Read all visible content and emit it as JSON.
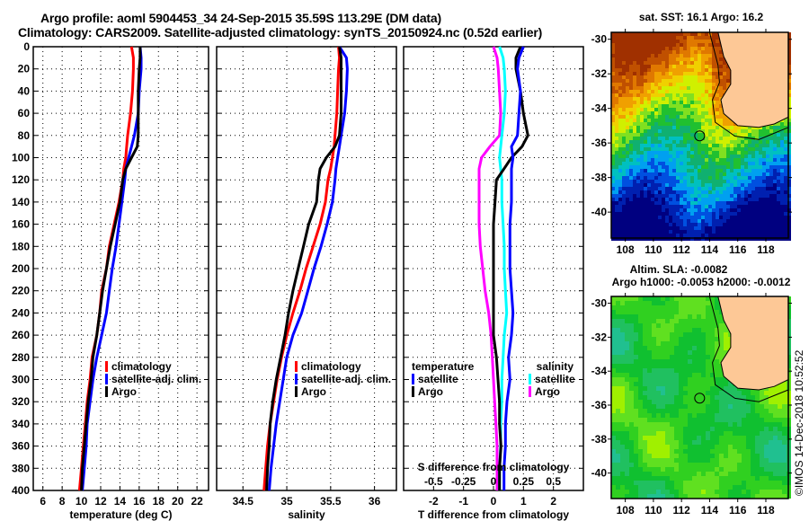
{
  "title": {
    "line1": "Argo profile: aoml 5904453_34 24-Sep-2015 35.59S 113.29E (DM data)",
    "line2": "Climatology: CARS2009. Satellite-adjusted climatology: synTS_20150924.nc (0.52d earlier)"
  },
  "colors": {
    "climatology": "#ff0000",
    "satellite": "#0000ff",
    "argo": "#000000",
    "sal_satellite": "#00ffff",
    "sal_argo": "#ff00ff",
    "land": "#fdc896"
  },
  "chart_data": [
    {
      "type": "line",
      "name": "temperature-profile",
      "xlabel": "temperature (deg C)",
      "ylabel": "",
      "xlim": [
        5,
        23.2
      ],
      "ylim": [
        400,
        0
      ],
      "xticks": [
        6,
        8,
        10,
        12,
        14,
        16,
        18,
        20,
        22
      ],
      "yticks": [
        0,
        20,
        40,
        60,
        80,
        100,
        120,
        140,
        160,
        180,
        200,
        220,
        240,
        260,
        280,
        300,
        320,
        340,
        360,
        380,
        400
      ],
      "grid": true,
      "legend": {
        "placement": "middle-right",
        "entries": [
          "climatology",
          "satellite-adj. clim.",
          "Argo"
        ]
      },
      "depth": [
        0,
        10,
        20,
        40,
        60,
        80,
        90,
        100,
        110,
        120,
        140,
        160,
        180,
        200,
        220,
        240,
        260,
        280,
        300,
        320,
        340,
        360,
        380,
        400
      ],
      "series": [
        {
          "name": "climatology",
          "values": [
            15.2,
            15.4,
            15.4,
            15.3,
            15.1,
            14.8,
            14.7,
            14.6,
            14.4,
            14.3,
            13.9,
            13.4,
            12.9,
            12.6,
            12.1,
            11.9,
            11.6,
            11.1,
            10.9,
            10.6,
            10.4,
            10.2,
            10.0,
            9.8
          ]
        },
        {
          "name": "satellite-adj. clim.",
          "values": [
            16.1,
            16.2,
            16.2,
            16.0,
            15.9,
            15.5,
            15.2,
            14.9,
            14.6,
            14.5,
            14.2,
            13.9,
            13.6,
            13.2,
            12.9,
            12.6,
            12.1,
            11.6,
            11.2,
            10.9,
            10.6,
            10.5,
            10.3,
            10.1
          ]
        },
        {
          "name": "Argo",
          "values": [
            16.1,
            16.1,
            16.0,
            15.9,
            15.9,
            15.9,
            15.8,
            15.2,
            14.6,
            14.3,
            14.0,
            13.5,
            13.0,
            12.6,
            12.2,
            11.9,
            11.6,
            11.2,
            11.0,
            10.7,
            10.5,
            10.3,
            10.1,
            10.0
          ]
        }
      ]
    },
    {
      "type": "line",
      "name": "salinity-profile",
      "xlabel": "salinity",
      "xlim": [
        34.2,
        36.25
      ],
      "ylim": [
        400,
        0
      ],
      "xticks": [
        34.5,
        35,
        35.5,
        36
      ],
      "xticklabels": [
        "34.5",
        "35",
        "35.5",
        "36"
      ],
      "grid": true,
      "legend": {
        "placement": "middle-right",
        "entries": [
          "climatology",
          "satellite-adj. clim.",
          "Argo"
        ]
      },
      "depth": [
        0,
        10,
        20,
        40,
        60,
        80,
        90,
        100,
        110,
        120,
        140,
        160,
        180,
        200,
        220,
        240,
        260,
        280,
        300,
        320,
        340,
        360,
        380,
        400
      ],
      "series": [
        {
          "name": "climatology",
          "values": [
            35.59,
            35.6,
            35.59,
            35.58,
            35.57,
            35.55,
            35.54,
            35.52,
            35.5,
            35.47,
            35.44,
            35.38,
            35.3,
            35.22,
            35.15,
            35.07,
            35.0,
            34.94,
            34.89,
            34.85,
            34.81,
            34.78,
            34.76,
            34.74
          ]
        },
        {
          "name": "satellite-adj. clim.",
          "values": [
            35.6,
            35.68,
            35.69,
            35.68,
            35.66,
            35.62,
            35.6,
            35.58,
            35.56,
            35.55,
            35.52,
            35.46,
            35.39,
            35.31,
            35.24,
            35.17,
            35.07,
            35.0,
            34.96,
            34.92,
            34.88,
            34.85,
            34.82,
            34.8
          ]
        },
        {
          "name": "Argo",
          "values": [
            35.6,
            35.62,
            35.62,
            35.62,
            35.62,
            35.6,
            35.55,
            35.45,
            35.38,
            35.36,
            35.34,
            35.25,
            35.19,
            35.13,
            35.07,
            35.02,
            34.98,
            34.93,
            34.88,
            34.84,
            34.81,
            34.8,
            34.78,
            34.77
          ]
        }
      ]
    },
    {
      "type": "line",
      "name": "difference-profile",
      "xlabel": "T difference from climatology",
      "xlim": [
        -3.0,
        3.0
      ],
      "ylim": [
        400,
        0
      ],
      "xticks": [
        -2,
        -1,
        0,
        1,
        2
      ],
      "secondary_xlabel": "S difference from climatology",
      "secondary_xlim": [
        -0.75,
        0.75
      ],
      "secondary_xticks": [
        -0.5,
        -0.25,
        0,
        0.25,
        0.5
      ],
      "secondary_xticklabels": [
        "-0.5",
        "-0.25",
        "0",
        "0.25",
        "0.5"
      ],
      "grid": true,
      "legend": {
        "placement": "middle",
        "groups": [
          {
            "title": "temperature",
            "entries": [
              "satellite",
              "Argo"
            ]
          },
          {
            "title": "salinity",
            "entries": [
              "satellite",
              "Argo"
            ]
          }
        ]
      },
      "depth": [
        0,
        10,
        20,
        40,
        60,
        80,
        90,
        100,
        110,
        120,
        140,
        160,
        180,
        200,
        220,
        240,
        260,
        280,
        300,
        320,
        340,
        360,
        380,
        400
      ],
      "series": [
        {
          "name": "temperature satellite",
          "axis": "T",
          "values": [
            1.0,
            0.85,
            0.8,
            0.9,
            0.85,
            0.8,
            0.6,
            0.65,
            0.6,
            0.6,
            0.6,
            0.55,
            0.55,
            0.55,
            0.6,
            0.65,
            0.6,
            0.5,
            0.55,
            0.45,
            0.4,
            0.4,
            0.35,
            0.35
          ]
        },
        {
          "name": "temperature Argo",
          "axis": "T",
          "values": [
            0.9,
            0.75,
            0.75,
            0.9,
            1.0,
            1.15,
            0.95,
            0.6,
            0.35,
            0.1,
            0.05,
            0.0,
            0.0,
            0.0,
            0.0,
            0.0,
            0.0,
            0.1,
            0.15,
            0.2,
            0.2,
            0.25,
            0.2,
            0.2
          ]
        },
        {
          "name": "salinity satellite",
          "axis": "S",
          "values": [
            0.05,
            0.08,
            0.09,
            0.1,
            0.09,
            0.07,
            0.06,
            0.05,
            0.06,
            0.07,
            0.07,
            0.08,
            0.09,
            0.09,
            0.1,
            0.11,
            0.09,
            0.08,
            0.07,
            0.07,
            0.06,
            0.06,
            0.05,
            0.05
          ]
        },
        {
          "name": "salinity Argo",
          "axis": "S",
          "values": [
            0.0,
            0.03,
            0.04,
            0.05,
            0.06,
            0.05,
            -0.03,
            -0.1,
            -0.12,
            -0.12,
            -0.12,
            -0.12,
            -0.11,
            -0.09,
            -0.07,
            -0.04,
            -0.02,
            -0.01,
            0.0,
            0.01,
            0.02,
            0.03,
            0.03,
            0.03
          ]
        }
      ]
    },
    {
      "type": "heatmap",
      "name": "sst-map",
      "title": "sat. SST: 16.1 Argo: 16.2",
      "xlim": [
        107,
        119.6
      ],
      "ylim": [
        -41.5,
        -29.6
      ],
      "xticks": [
        108,
        110,
        112,
        114,
        116,
        118
      ],
      "yticks": [
        -30,
        -32,
        -34,
        -36,
        -38,
        -40
      ],
      "marker": {
        "lon": 113.29,
        "lat": -35.59
      }
    },
    {
      "type": "heatmap",
      "name": "sla-map",
      "title": "Altim. SLA: -0.0082",
      "subtitle": "Argo h1000: -0.0053 h2000: -0.0012",
      "xlim": [
        107,
        119.6
      ],
      "ylim": [
        -41.5,
        -29.6
      ],
      "xticks": [
        108,
        110,
        112,
        114,
        116,
        118
      ],
      "yticks": [
        -30,
        -32,
        -34,
        -36,
        -38,
        -40
      ],
      "marker": {
        "lon": 113.29,
        "lat": -35.59
      }
    }
  ],
  "credit": "©IMOS 14-Dec-2018 10:52:52"
}
